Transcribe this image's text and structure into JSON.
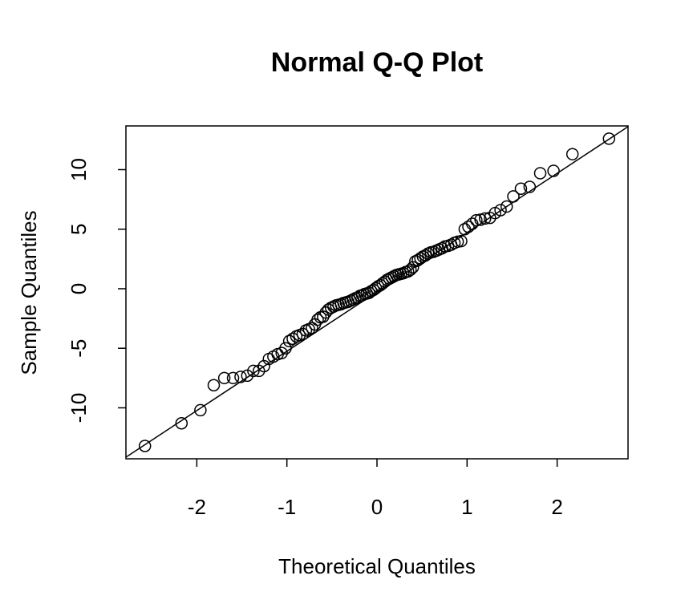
{
  "chart_data": {
    "type": "scatter",
    "title": "Normal Q-Q Plot",
    "x_label": "Theoretical Quantiles",
    "y_label": "Sample Quantiles",
    "x": [
      -2.576,
      -2.17,
      -1.96,
      -1.812,
      -1.695,
      -1.598,
      -1.514,
      -1.44,
      -1.372,
      -1.311,
      -1.254,
      -1.2,
      -1.15,
      -1.103,
      -1.058,
      -1.015,
      -0.974,
      -0.935,
      -0.896,
      -0.86,
      -0.824,
      -0.789,
      -0.755,
      -0.722,
      -0.69,
      -0.659,
      -0.628,
      -0.598,
      -0.568,
      -0.539,
      -0.51,
      -0.482,
      -0.454,
      -0.426,
      -0.399,
      -0.372,
      -0.345,
      -0.319,
      -0.292,
      -0.266,
      -0.24,
      -0.215,
      -0.189,
      -0.164,
      -0.138,
      -0.113,
      -0.088,
      -0.063,
      -0.038,
      -0.013,
      0.013,
      0.038,
      0.063,
      0.088,
      0.113,
      0.138,
      0.164,
      0.189,
      0.215,
      0.24,
      0.266,
      0.292,
      0.319,
      0.345,
      0.372,
      0.399,
      0.426,
      0.454,
      0.482,
      0.51,
      0.539,
      0.568,
      0.598,
      0.628,
      0.659,
      0.69,
      0.722,
      0.755,
      0.789,
      0.824,
      0.86,
      0.896,
      0.935,
      0.974,
      1.015,
      1.058,
      1.103,
      1.15,
      1.2,
      1.254,
      1.311,
      1.372,
      1.44,
      1.514,
      1.598,
      1.695,
      1.812,
      1.96,
      2.17,
      2.576
    ],
    "values": [
      -13.2,
      -11.3,
      -10.2,
      -8.1,
      -7.5,
      -7.5,
      -7.4,
      -7.3,
      -6.9,
      -6.9,
      -6.5,
      -5.9,
      -5.7,
      -5.5,
      -5.4,
      -5.0,
      -4.4,
      -4.2,
      -4.0,
      -3.9,
      -3.8,
      -3.5,
      -3.4,
      -3.3,
      -3.0,
      -2.6,
      -2.4,
      -2.35,
      -2.0,
      -1.75,
      -1.6,
      -1.5,
      -1.4,
      -1.35,
      -1.3,
      -1.2,
      -1.15,
      -1.1,
      -1.0,
      -0.9,
      -0.8,
      -0.75,
      -0.6,
      -0.55,
      -0.45,
      -0.4,
      -0.35,
      -0.2,
      -0.1,
      0.05,
      0.2,
      0.3,
      0.45,
      0.6,
      0.75,
      0.85,
      0.95,
      1.05,
      1.15,
      1.2,
      1.25,
      1.3,
      1.4,
      1.45,
      1.6,
      1.8,
      2.3,
      2.4,
      2.55,
      2.7,
      2.8,
      2.95,
      3.05,
      3.1,
      3.2,
      3.3,
      3.4,
      3.55,
      3.6,
      3.7,
      3.85,
      3.95,
      4.0,
      5.0,
      5.2,
      5.45,
      5.75,
      5.8,
      5.9,
      5.95,
      6.35,
      6.6,
      6.9,
      7.75,
      8.4,
      8.55,
      9.7,
      9.9,
      11.3,
      12.6
    ],
    "color": "#000000",
    "reference_line": {
      "intercept": -0.27,
      "slope": 4.98
    },
    "xlim": [
      -2.787,
      2.787
    ],
    "ylim": [
      -14.28,
      13.67
    ],
    "xticks": [
      -2,
      -1,
      0,
      1,
      2
    ],
    "yticks": [
      -10,
      -5,
      0,
      5,
      10
    ]
  }
}
